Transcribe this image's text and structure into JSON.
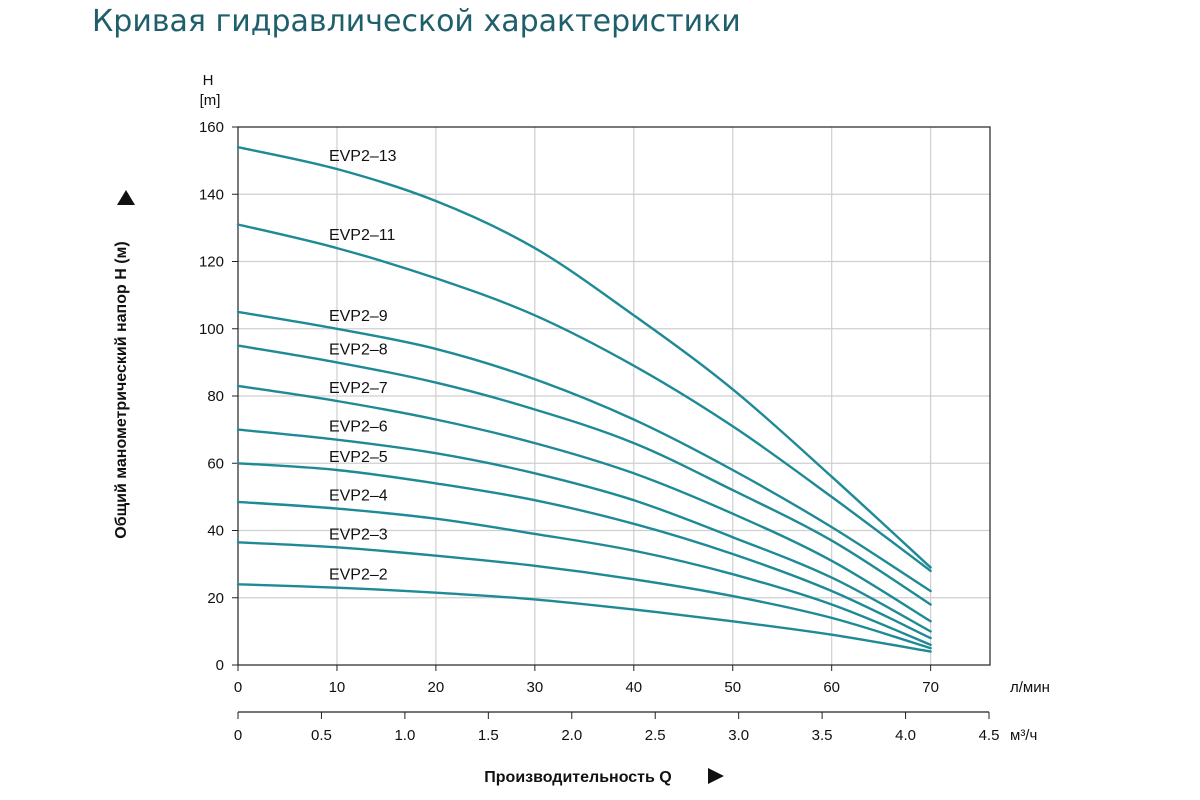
{
  "page": {
    "title": "Кривая гидравлической характеристики"
  },
  "chart_data": {
    "type": "line",
    "title": "",
    "ylabel": "Общий манометрический напор H (м)",
    "yunit_top": "H",
    "yunit_bottom": "[m]",
    "xlabel": "Производительность Q",
    "x_unit_primary": "л/мин",
    "x_unit_secondary": "м³/ч",
    "ylim": [
      0,
      160
    ],
    "xlim": [
      0,
      76
    ],
    "y_ticks": [
      "0",
      "20",
      "40",
      "60",
      "80",
      "100",
      "120",
      "140",
      "160"
    ],
    "x_ticks_primary": [
      "0",
      "10",
      "20",
      "30",
      "40",
      "50",
      "60",
      "70"
    ],
    "x_ticks_secondary": [
      "0",
      "0.5",
      "1.0",
      "1.5",
      "2.0",
      "2.5",
      "3.0",
      "3.5",
      "4.0",
      "4.5"
    ],
    "grid": true,
    "line_color": "#1e8a96",
    "x": [
      0,
      10,
      20,
      30,
      40,
      50,
      60,
      70
    ],
    "series": [
      {
        "name": "EVP2–13",
        "values": [
          154,
          147.5,
          138,
          124,
          104,
          82,
          56,
          29
        ]
      },
      {
        "name": "EVP2–11",
        "values": [
          131,
          124,
          115,
          104,
          89,
          71,
          50,
          28
        ]
      },
      {
        "name": "EVP2–9",
        "values": [
          105,
          100,
          94,
          85,
          73,
          58,
          41,
          22
        ]
      },
      {
        "name": "EVP2–8",
        "values": [
          95,
          90,
          84,
          76,
          66,
          52,
          37,
          18
        ]
      },
      {
        "name": "EVP2–7",
        "values": [
          83,
          78.5,
          73,
          66,
          57,
          45,
          31,
          13
        ]
      },
      {
        "name": "EVP2–6",
        "values": [
          70,
          67,
          63,
          57,
          49,
          38,
          26,
          10
        ]
      },
      {
        "name": "EVP2–5",
        "values": [
          60,
          58,
          54,
          49,
          42,
          33,
          22,
          8
        ]
      },
      {
        "name": "EVP2–4",
        "values": [
          48.5,
          46.5,
          43.5,
          39,
          34,
          27,
          18,
          6
        ]
      },
      {
        "name": "EVP2–3",
        "values": [
          36.5,
          35,
          32.5,
          29.5,
          25.5,
          20.5,
          14,
          5
        ]
      },
      {
        "name": "EVP2–2",
        "values": [
          24,
          23,
          21.5,
          19.5,
          16.5,
          13,
          9,
          4
        ]
      }
    ]
  }
}
